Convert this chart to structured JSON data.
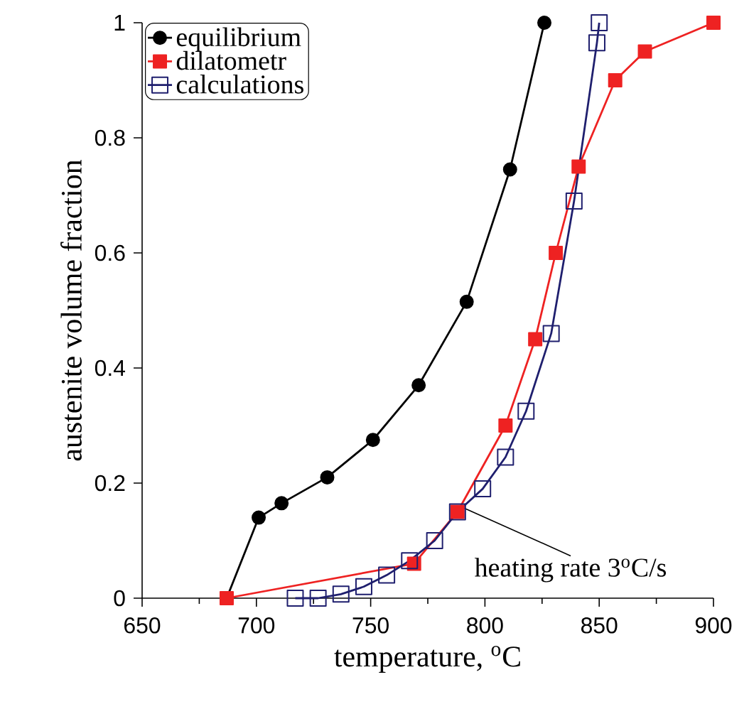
{
  "chart_data": {
    "type": "line",
    "xlabel": "temperature, $^{o}$C",
    "ylabel": "austenite volume fraction",
    "xlim": [
      650,
      900
    ],
    "xticks": [
      650,
      700,
      750,
      800,
      850,
      900
    ],
    "ylim": [
      0,
      1
    ],
    "yticks": [
      0,
      0.2,
      0.4,
      0.6,
      0.8,
      1
    ],
    "legend": "top left",
    "grid": false,
    "series": [
      {
        "name": "equilibrium",
        "color": "#000000",
        "marker": "circle",
        "x": [
          687,
          701,
          711,
          731,
          751,
          771,
          792,
          811,
          826
        ],
        "values": [
          0,
          0.14,
          0.165,
          0.21,
          0.275,
          0.37,
          0.515,
          0.745,
          1
        ]
      },
      {
        "name": "dilatometr",
        "color": "#ee2222",
        "marker": "square",
        "x": [
          687,
          769,
          788,
          809,
          822,
          831,
          841,
          857,
          870,
          900
        ],
        "values": [
          0,
          0.06,
          0.15,
          0.3,
          0.45,
          0.6,
          0.75,
          0.9,
          0.95,
          1
        ]
      },
      {
        "name": "calculations",
        "color": "#1f1f6e",
        "marker": "square",
        "x": [
          717,
          727,
          737,
          747,
          757,
          767,
          778,
          788,
          799,
          809,
          818,
          829,
          839,
          849,
          850
        ],
        "values": [
          0,
          0,
          0.007,
          0.02,
          0.04,
          0.065,
          0.1,
          0.15,
          0.19,
          0.245,
          0.325,
          0.46,
          0.69,
          0.965,
          1
        ]
      }
    ],
    "annotations": [
      {
        "text": "heating rate 3$^{o}$C/s",
        "x": 789,
        "y": 0.16
      }
    ]
  }
}
